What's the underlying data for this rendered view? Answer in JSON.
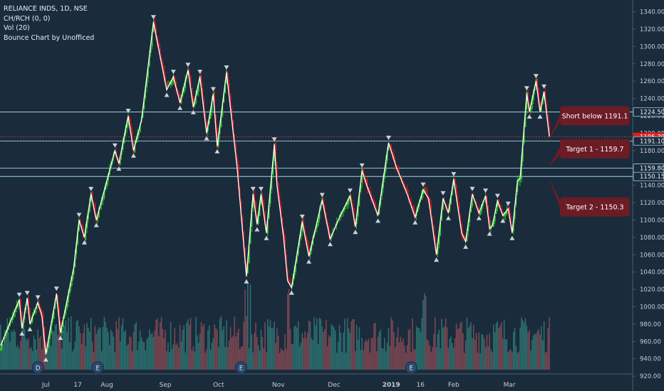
{
  "legend": {
    "symbol": "RELIANCE INDS, 1D, NSE",
    "indicator1": "CH/RCH (0, 0)",
    "indicator2": "Vol (20)",
    "indicator3": "Bounce Chart by Unofficed"
  },
  "colors": {
    "background": "#1a2b3c",
    "up": "#2ee01f",
    "down": "#ef1515",
    "up_volume": "#2f7a76",
    "down_volume": "#8b4c55",
    "zigzag": "#ffffff",
    "level_line": "#9fd3df",
    "short_line": "#e43b3b",
    "callout": "#6b1c24",
    "price_tag": "#e21d1d",
    "axis_text": "#c3ccd6"
  },
  "chart_data": {
    "type": "candlestick",
    "title": "RELIANCE INDS, 1D, NSE",
    "y_ticks": [
      "1340.00",
      "1320.00",
      "1300.00",
      "1280.00",
      "1260.00",
      "1240.00",
      "1220.00",
      "1200.00",
      "1180.00",
      "1160.00",
      "1140.00",
      "1120.00",
      "1100.00",
      "1080.00",
      "1060.00",
      "1040.00",
      "1020.00",
      "1000.00",
      "980.00",
      "960.00",
      "940.00",
      "920.00"
    ],
    "ylim": [
      916,
      1347
    ],
    "x_ticks": [
      "Jul",
      "17",
      "Aug",
      "Sep",
      "Oct",
      "Nov",
      "Dec",
      "2019",
      "16",
      "Feb",
      "Mar"
    ],
    "levels": [
      {
        "label": "1224.50",
        "value": 1224.5,
        "kind": "level"
      },
      {
        "label": "1195.70",
        "value": 1195.7,
        "kind": "current"
      },
      {
        "label": "1191.10",
        "value": 1191.1,
        "kind": "level"
      },
      {
        "label": "1159.80",
        "value": 1159.8,
        "kind": "level"
      },
      {
        "label": "1150.15",
        "value": 1150.15,
        "kind": "level"
      }
    ],
    "annotations": [
      {
        "text": "Short below 1191.1",
        "price": 1220
      },
      {
        "text": "Target 1 -  1159.7",
        "price": 1182
      },
      {
        "text": "Target 2 - 1150.3",
        "price": 1115
      }
    ],
    "event_markers": [
      {
        "label": "D",
        "after_bar": 28
      },
      {
        "label": "E",
        "after_bar": 73
      },
      {
        "label": "E",
        "after_bar": 181
      },
      {
        "label": "E",
        "after_bar": 309
      }
    ],
    "zigzag_pivots": [
      [
        0,
        955
      ],
      [
        14,
        1008
      ],
      [
        16,
        975
      ],
      [
        20,
        1010
      ],
      [
        22,
        980
      ],
      [
        28,
        1005
      ],
      [
        31,
        990
      ],
      [
        34,
        945
      ],
      [
        42,
        1015
      ],
      [
        45,
        970
      ],
      [
        55,
        1045
      ],
      [
        59,
        1100
      ],
      [
        63,
        1080
      ],
      [
        68,
        1130
      ],
      [
        72,
        1100
      ],
      [
        86,
        1180
      ],
      [
        89,
        1165
      ],
      [
        96,
        1220
      ],
      [
        100,
        1180
      ],
      [
        106,
        1215
      ],
      [
        115,
        1328
      ],
      [
        125,
        1250
      ],
      [
        130,
        1265
      ],
      [
        135,
        1235
      ],
      [
        141,
        1273
      ],
      [
        145,
        1230
      ],
      [
        150,
        1265
      ],
      [
        155,
        1200
      ],
      [
        160,
        1245
      ],
      [
        163,
        1185
      ],
      [
        170,
        1270
      ],
      [
        178,
        1160
      ],
      [
        185,
        1035
      ],
      [
        190,
        1130
      ],
      [
        193,
        1095
      ],
      [
        196,
        1130
      ],
      [
        200,
        1085
      ],
      [
        206,
        1187
      ],
      [
        208,
        1140
      ],
      [
        213,
        1080
      ],
      [
        216,
        1030
      ],
      [
        219,
        1022
      ],
      [
        227,
        1098
      ],
      [
        232,
        1058
      ],
      [
        242,
        1123
      ],
      [
        248,
        1078
      ],
      [
        255,
        1103
      ],
      [
        263,
        1128
      ],
      [
        267,
        1092
      ],
      [
        272,
        1157
      ],
      [
        276,
        1138
      ],
      [
        284,
        1105
      ],
      [
        292,
        1189
      ],
      [
        298,
        1160
      ],
      [
        306,
        1130
      ],
      [
        312,
        1103
      ],
      [
        318,
        1135
      ],
      [
        322,
        1125
      ],
      [
        328,
        1060
      ],
      [
        333,
        1125
      ],
      [
        337,
        1108
      ],
      [
        341,
        1147
      ],
      [
        347,
        1085
      ],
      [
        350,
        1075
      ],
      [
        355,
        1130
      ],
      [
        360,
        1108
      ],
      [
        365,
        1128
      ],
      [
        368,
        1090
      ],
      [
        370,
        1093
      ],
      [
        374,
        1122
      ],
      [
        378,
        1105
      ],
      [
        382,
        1113
      ],
      [
        385,
        1085
      ],
      [
        389,
        1145
      ],
      [
        391,
        1148
      ],
      [
        396,
        1246
      ],
      [
        398,
        1225
      ],
      [
        403,
        1260
      ],
      [
        406,
        1225
      ],
      [
        409,
        1248
      ],
      [
        413,
        1196
      ]
    ],
    "volume_ylim": [
      0,
      100
    ]
  },
  "time_axis": {
    "bar_count": 414,
    "ticks": [
      {
        "label": "Jul",
        "bar": 34
      },
      {
        "label": "17",
        "bar": 58
      },
      {
        "label": "Aug",
        "bar": 80
      },
      {
        "label": "Sep",
        "bar": 124
      },
      {
        "label": "Oct",
        "bar": 164
      },
      {
        "label": "Nov",
        "bar": 209
      },
      {
        "label": "Dec",
        "bar": 251
      },
      {
        "label": "2019",
        "bar": 294
      },
      {
        "label": "16",
        "bar": 316
      },
      {
        "label": "Feb",
        "bar": 341
      },
      {
        "label": "Mar",
        "bar": 383
      }
    ]
  }
}
